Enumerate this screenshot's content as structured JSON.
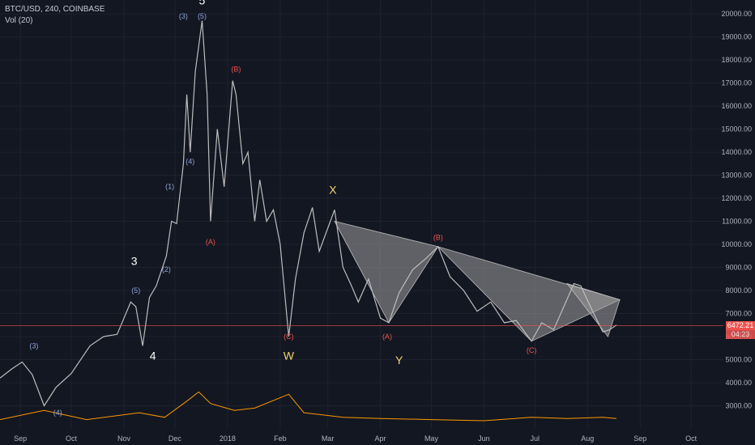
{
  "header": {
    "symbol_line": "BTC/USD, 240, COINBASE",
    "volume_label": "Vol (20)"
  },
  "last_price": {
    "value": 6472.21,
    "label": "6472.21",
    "countdown": "04:23",
    "color": "#ef5350"
  },
  "colors": {
    "background": "#131722",
    "grid": "#1e222d",
    "up_candle": "#26a69a",
    "down_candle": "#ef5350",
    "wick": "#bdbdbd",
    "wave_label_blue": "#90a4d8",
    "wave_label_red": "#ef5350",
    "wave_label_yellow": "#f5d36b",
    "wave_label_white": "#ffffff",
    "triangle_fill": "#9e9e9e",
    "volume_ma": "#ff9800"
  },
  "chart_data": {
    "type": "line",
    "x_axis": {
      "tick_labels": [
        "Sep",
        "Oct",
        "Nov",
        "Dec",
        "2018",
        "Feb",
        "Mar",
        "Apr",
        "May",
        "Jun",
        "Jul",
        "Aug",
        "Sep",
        "Oct"
      ],
      "tick_dates": [
        "2017-09-01",
        "2017-10-01",
        "2017-11-01",
        "2017-12-01",
        "2018-01-01",
        "2018-02-01",
        "2018-03-01",
        "2018-04-01",
        "2018-05-01",
        "2018-06-01",
        "2018-07-01",
        "2018-08-01",
        "2018-09-01",
        "2018-10-01"
      ],
      "range": [
        "2017-08-20",
        "2018-10-20"
      ]
    },
    "y_axis": {
      "tick_labels": [
        "3000.00",
        "4000.00",
        "5000.00",
        "6000.00",
        "7000.00",
        "8000.00",
        "9000.00",
        "10000.00",
        "11000.00",
        "12000.00",
        "13000.00",
        "14000.00",
        "15000.00",
        "16000.00",
        "17000.00",
        "18000.00",
        "19000.00",
        "20000.00"
      ],
      "tick_values": [
        3000,
        4000,
        5000,
        6000,
        7000,
        8000,
        9000,
        10000,
        11000,
        12000,
        13000,
        14000,
        15000,
        16000,
        17000,
        18000,
        19000,
        20000
      ],
      "range": [
        2000,
        20600
      ],
      "position": "right"
    },
    "series": [
      {
        "x": [
          "2017-08-20",
          "2017-08-27",
          "2017-09-02",
          "2017-09-08",
          "2017-09-15",
          "2017-09-22",
          "2017-10-01",
          "2017-10-12",
          "2017-10-20",
          "2017-10-28",
          "2017-11-05",
          "2017-11-08",
          "2017-11-12",
          "2017-11-16",
          "2017-11-20",
          "2017-11-26",
          "2017-11-29",
          "2017-12-02",
          "2017-12-06",
          "2017-12-08",
          "2017-12-10",
          "2017-12-13",
          "2017-12-17",
          "2017-12-20",
          "2017-12-22",
          "2017-12-26",
          "2017-12-30",
          "2018-01-04",
          "2018-01-06",
          "2018-01-10",
          "2018-01-13",
          "2018-01-17",
          "2018-01-20",
          "2018-01-24",
          "2018-01-28",
          "2018-02-01",
          "2018-02-06",
          "2018-02-10",
          "2018-02-15",
          "2018-02-20",
          "2018-02-24",
          "2018-03-05",
          "2018-03-10",
          "2018-03-15",
          "2018-03-19",
          "2018-03-25",
          "2018-04-01",
          "2018-04-06",
          "2018-04-12",
          "2018-04-20",
          "2018-04-28",
          "2018-05-05",
          "2018-05-12",
          "2018-05-20",
          "2018-05-28",
          "2018-06-05",
          "2018-06-13",
          "2018-06-20",
          "2018-06-29",
          "2018-07-05",
          "2018-07-12",
          "2018-07-18",
          "2018-07-24",
          "2018-07-28",
          "2018-08-04",
          "2018-08-10",
          "2018-08-14",
          "2018-08-18"
        ],
        "y": [
          4200,
          4600,
          4900,
          4350,
          3000,
          3800,
          4400,
          5600,
          6000,
          6100,
          7500,
          7300,
          5600,
          7700,
          8200,
          9500,
          11000,
          10900,
          13500,
          16500,
          14000,
          17500,
          19700,
          16500,
          11000,
          15000,
          12500,
          17100,
          16500,
          13500,
          14000,
          11000,
          12800,
          11000,
          11500,
          10000,
          6000,
          8500,
          10500,
          11600,
          9700,
          11500,
          9000,
          8200,
          7500,
          8500,
          6800,
          6600,
          7900,
          8900,
          9400,
          9900,
          8600,
          8000,
          7100,
          7500,
          6600,
          6700,
          5800,
          6600,
          6300,
          7300,
          8300,
          8200,
          7100,
          6200,
          6300,
          6500
        ],
        "color": "#bdbdbd"
      }
    ],
    "annotations": [
      {
        "text": "(3)",
        "date": "2017-09-09",
        "price": 5500,
        "color_key": "wave_label_blue"
      },
      {
        "text": "(4)",
        "date": "2017-09-23",
        "price": 2600,
        "color_key": "wave_label_blue"
      },
      {
        "text": "(5)",
        "date": "2017-11-08",
        "price": 7900,
        "color_key": "wave_label_blue"
      },
      {
        "text": "3",
        "date": "2017-11-07",
        "price": 9100,
        "color_key": "wave_label_white",
        "big": true
      },
      {
        "text": "4",
        "date": "2017-11-18",
        "price": 5000,
        "color_key": "wave_label_white",
        "big": true
      },
      {
        "text": "(2)",
        "date": "2017-11-26",
        "price": 8800,
        "color_key": "wave_label_blue"
      },
      {
        "text": "(1)",
        "date": "2017-11-28",
        "price": 12400,
        "color_key": "wave_label_blue"
      },
      {
        "text": "(4)",
        "date": "2017-12-10",
        "price": 13500,
        "color_key": "wave_label_blue"
      },
      {
        "text": "(3)",
        "date": "2017-12-06",
        "price": 19800,
        "color_key": "wave_label_blue"
      },
      {
        "text": "(5)",
        "date": "2017-12-17",
        "price": 19800,
        "color_key": "wave_label_blue"
      },
      {
        "text": "5",
        "date": "2017-12-17",
        "price": 20400,
        "color_key": "wave_label_white",
        "big": true
      },
      {
        "text": "(A)",
        "date": "2017-12-22",
        "price": 10000,
        "color_key": "wave_label_red"
      },
      {
        "text": "(B)",
        "date": "2018-01-06",
        "price": 17500,
        "color_key": "wave_label_red"
      },
      {
        "text": "(C)",
        "date": "2018-02-06",
        "price": 5900,
        "color_key": "wave_label_red"
      },
      {
        "text": "W",
        "date": "2018-02-06",
        "price": 5000,
        "color_key": "wave_label_yellow",
        "big": true
      },
      {
        "text": "X",
        "date": "2018-03-04",
        "price": 12200,
        "color_key": "wave_label_yellow",
        "big": true
      },
      {
        "text": "(A)",
        "date": "2018-04-05",
        "price": 5900,
        "color_key": "wave_label_red"
      },
      {
        "text": "Y",
        "date": "2018-04-12",
        "price": 4800,
        "color_key": "wave_label_yellow",
        "big": true
      },
      {
        "text": "(B)",
        "date": "2018-05-05",
        "price": 10200,
        "color_key": "wave_label_red"
      },
      {
        "text": "(C)",
        "date": "2018-06-29",
        "price": 5300,
        "color_key": "wave_label_red"
      }
    ],
    "triangles": [
      {
        "points": [
          [
            "2018-03-05",
            11000
          ],
          [
            "2018-04-06",
            6600
          ],
          [
            "2018-05-05",
            9900
          ]
        ]
      },
      {
        "points": [
          [
            "2018-05-05",
            9900
          ],
          [
            "2018-06-29",
            5800
          ],
          [
            "2018-08-20",
            7600
          ]
        ]
      },
      {
        "points": [
          [
            "2018-07-20",
            8300
          ],
          [
            "2018-08-13",
            6000
          ],
          [
            "2018-08-20",
            7600
          ]
        ]
      }
    ],
    "volume_profile": [
      [
        "2017-08-20",
        2400
      ],
      [
        "2017-09-15",
        2800
      ],
      [
        "2017-10-10",
        2400
      ],
      [
        "2017-11-10",
        2700
      ],
      [
        "2017-11-25",
        2500
      ],
      [
        "2017-12-08",
        3200
      ],
      [
        "2017-12-15",
        3600
      ],
      [
        "2017-12-22",
        3100
      ],
      [
        "2018-01-05",
        2800
      ],
      [
        "2018-01-17",
        2900
      ],
      [
        "2018-02-06",
        3500
      ],
      [
        "2018-02-15",
        2700
      ],
      [
        "2018-03-10",
        2500
      ],
      [
        "2018-04-01",
        2450
      ],
      [
        "2018-05-01",
        2400
      ],
      [
        "2018-06-01",
        2350
      ],
      [
        "2018-06-29",
        2500
      ],
      [
        "2018-07-20",
        2450
      ],
      [
        "2018-08-10",
        2500
      ],
      [
        "2018-08-18",
        2450
      ]
    ]
  }
}
